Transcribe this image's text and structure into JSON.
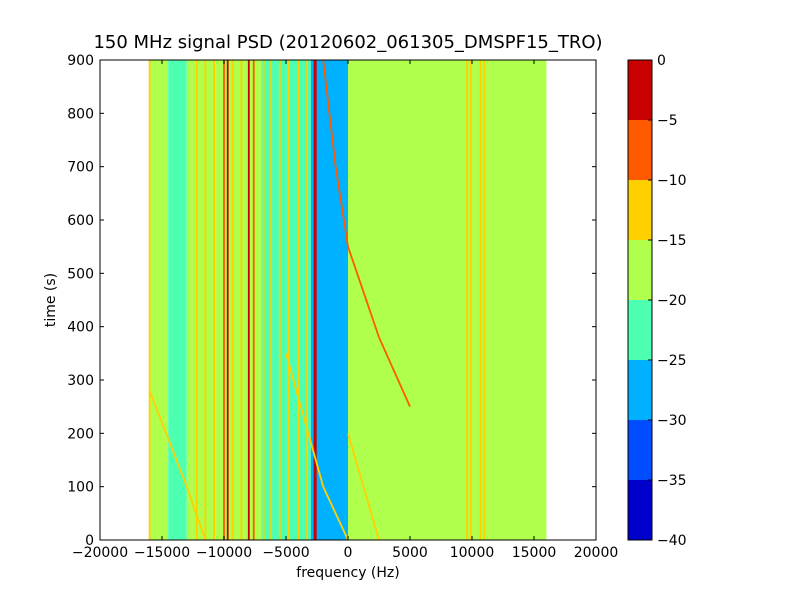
{
  "chart_data": {
    "type": "heatmap",
    "title": "150 MHz signal PSD (20120602_061305_DMSPF15_TRO)",
    "xlabel": "frequency (Hz)",
    "ylabel": "time (s)",
    "xlim": [
      -20000,
      20000
    ],
    "ylim": [
      0,
      900
    ],
    "xticks": [
      -20000,
      -15000,
      -10000,
      -5000,
      0,
      5000,
      10000,
      15000,
      20000
    ],
    "yticks": [
      0,
      100,
      200,
      300,
      400,
      500,
      600,
      700,
      800,
      900
    ],
    "data_extent_x": [
      -16000,
      16000
    ],
    "colorbar": {
      "levels": [
        -40,
        -35,
        -30,
        -25,
        -20,
        -15,
        -10,
        -5,
        0
      ],
      "ticks": [
        0,
        -5,
        -10,
        -15,
        -20,
        -25,
        -30,
        -35,
        -40
      ],
      "colors": [
        "#0000cd",
        "#004dff",
        "#00b1ff",
        "#4dffb1",
        "#b1ff4d",
        "#ffd000",
        "#ff5a00",
        "#c80000"
      ]
    },
    "regions": [
      {
        "x": [
          -16000,
          -14500
        ],
        "level": -20
      },
      {
        "x": [
          -14500,
          -13000
        ],
        "level": -25
      },
      {
        "x": [
          -13000,
          -7000
        ],
        "level": -20
      },
      {
        "x": [
          -7000,
          -3000
        ],
        "level": -25
      },
      {
        "x": [
          -3000,
          0
        ],
        "level": -30
      },
      {
        "x": [
          0,
          16000
        ],
        "level": -20
      }
    ],
    "vertical_lines": [
      {
        "x": -16000,
        "level": -15
      },
      {
        "x": -12200,
        "level": -15
      },
      {
        "x": -11500,
        "level": -15
      },
      {
        "x": -10800,
        "level": -15
      },
      {
        "x": -10000,
        "level": -10
      },
      {
        "x": -9700,
        "level": -5
      },
      {
        "x": -9300,
        "level": -15
      },
      {
        "x": -8600,
        "level": -15
      },
      {
        "x": -8000,
        "level": -5
      },
      {
        "x": -7600,
        "level": -10
      },
      {
        "x": -6800,
        "level": -15
      },
      {
        "x": -6200,
        "level": -15
      },
      {
        "x": -5500,
        "level": -15
      },
      {
        "x": -4800,
        "level": -15
      },
      {
        "x": -4000,
        "level": -15
      },
      {
        "x": -3300,
        "level": -15
      },
      {
        "x": -2700,
        "level": -5
      },
      {
        "x": -2600,
        "level": 0
      },
      {
        "x": 9600,
        "level": -15
      },
      {
        "x": 9900,
        "level": -15
      },
      {
        "x": 10700,
        "level": -15
      },
      {
        "x": 11000,
        "level": -15
      }
    ],
    "drifting_lines": [
      {
        "points": [
          [
            -2000,
            900
          ],
          [
            -1000,
            700
          ],
          [
            0,
            550
          ],
          [
            2500,
            380
          ],
          [
            5000,
            250
          ]
        ],
        "level": -10
      },
      {
        "points": [
          [
            -16000,
            280
          ],
          [
            -13000,
            100
          ],
          [
            -11500,
            0
          ]
        ],
        "level": -15
      },
      {
        "points": [
          [
            -5000,
            350
          ],
          [
            -2000,
            100
          ],
          [
            0,
            0
          ]
        ],
        "level": -15
      },
      {
        "points": [
          [
            0,
            200
          ],
          [
            2500,
            0
          ]
        ],
        "level": -15
      }
    ]
  }
}
